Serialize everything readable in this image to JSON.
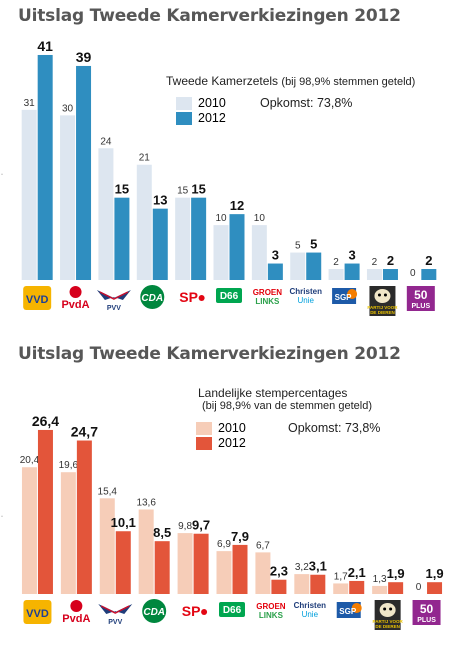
{
  "chart_data": [
    {
      "type": "bar",
      "title": "Uitslag Tweede Kamerverkiezingen 2012",
      "legend_title": "Tweede Kamerzetels",
      "legend_subtitle": "(bij 98,9% stemmen geteld)",
      "turnout": "Opkomst: 73,8%",
      "categories": [
        "VVD",
        "PvdA",
        "PVV",
        "CDA",
        "SP",
        "D66",
        "GroenLinks",
        "ChristenUnie",
        "SGP",
        "Partij voor de Dieren",
        "50PLUS"
      ],
      "series": [
        {
          "name": "2010",
          "color": "#dde6f0",
          "values": [
            31,
            30,
            24,
            21,
            15,
            10,
            10,
            5,
            2,
            2,
            0
          ],
          "labels": [
            "31",
            "30",
            "24",
            "21",
            "15",
            "10",
            "10",
            "5",
            "2",
            "2",
            "0"
          ]
        },
        {
          "name": "2012",
          "color": "#2f8ec0",
          "values": [
            41,
            39,
            15,
            13,
            15,
            12,
            3,
            5,
            3,
            2,
            2
          ],
          "labels": [
            "41",
            "39",
            "15",
            "13",
            "15",
            "12",
            "3",
            "5",
            "3",
            "2",
            "2"
          ]
        }
      ],
      "ylim": [
        0,
        43
      ],
      "legend_position": "top-right"
    },
    {
      "type": "bar",
      "title": "Uitslag Tweede Kamerverkiezingen 2012",
      "legend_title": "Landelijke stempercentages",
      "legend_subtitle": "(bij 98,9% van de stemmen geteld)",
      "turnout": "Opkomst: 73,8%",
      "categories": [
        "VVD",
        "PvdA",
        "PVV",
        "CDA",
        "SP",
        "D66",
        "GroenLinks",
        "ChristenUnie",
        "SGP",
        "Partij voor de Dieren",
        "50PLUS"
      ],
      "series": [
        {
          "name": "2010",
          "color": "#f6cdb8",
          "values": [
            20.4,
            19.6,
            15.4,
            13.6,
            9.8,
            6.9,
            6.7,
            3.2,
            1.7,
            1.3,
            0
          ],
          "labels": [
            "20,4",
            "19,6",
            "15,4",
            "13,6",
            "9,8",
            "6,9",
            "6,7",
            "3,2",
            "1,7",
            "1,3",
            "0"
          ]
        },
        {
          "name": "2012",
          "color": "#e3553a",
          "values": [
            26.4,
            24.7,
            10.1,
            8.5,
            9.7,
            7.9,
            2.3,
            3.1,
            2.1,
            1.9,
            1.9
          ],
          "labels": [
            "26,4",
            "24,7",
            "10,1",
            "8,5",
            "9,7",
            "7,9",
            "2,3",
            "3,1",
            "2,1",
            "1,9",
            "1,9"
          ]
        }
      ],
      "ylim": [
        0,
        28
      ],
      "legend_position": "top-right"
    }
  ],
  "logos": [
    {
      "text": "VVD",
      "color": "#f39200"
    },
    {
      "text": "PvdA",
      "color": "#d6001c"
    },
    {
      "text": "PVV",
      "color": "#1f3d7a"
    },
    {
      "text": "CDA",
      "color": "#00873e"
    },
    {
      "text": "SP",
      "color": "#e30613"
    },
    {
      "text": "D66",
      "color": "#00a650"
    },
    {
      "text": "GROEN LINKS",
      "color": "#e3000b"
    },
    {
      "text": "Christen Unie",
      "color": "#00a0dc"
    },
    {
      "text": "SGP",
      "color": "#f47d00"
    },
    {
      "text": "PARTIJ VOOR DE DIEREN",
      "color": "#000000"
    },
    {
      "text": "50 PLUS",
      "color": "#92278f"
    }
  ]
}
